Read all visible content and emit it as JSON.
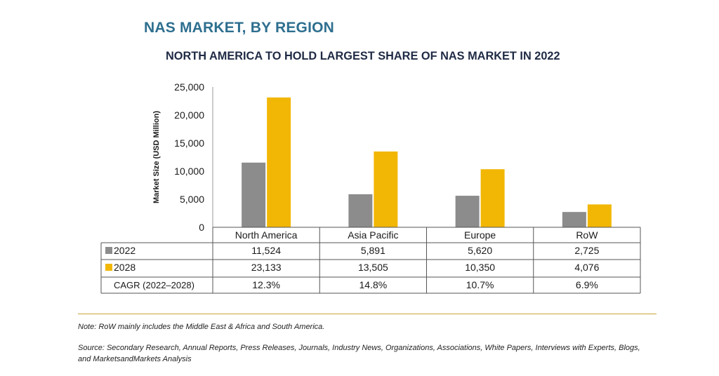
{
  "header": {
    "title": "NAS MARKET, BY REGION",
    "subtitle": "NORTH AMERICA TO HOLD LARGEST SHARE OF NAS MARKET IN 2022"
  },
  "chart_data": {
    "type": "bar",
    "ylabel": "Market Size (USD Million)",
    "ylim": [
      0,
      25000
    ],
    "yticks": [
      "0",
      "5,000",
      "10,000",
      "15,000",
      "20,000",
      "25,000"
    ],
    "yticks_values": [
      0,
      5000,
      10000,
      15000,
      20000,
      25000
    ],
    "categories": [
      "North America",
      "Asia Pacific",
      "Europe",
      "RoW"
    ],
    "series": [
      {
        "name": "2022",
        "color": "#8c8c8c",
        "values": [
          11524,
          5891,
          5620,
          2725
        ],
        "labels": [
          "11,524",
          "5,891",
          "5,620",
          "2,725"
        ]
      },
      {
        "name": "2028",
        "color": "#f2b705",
        "values": [
          23133,
          13505,
          10350,
          4076
        ],
        "labels": [
          "23,133",
          "13,505",
          "10,350",
          "4,076"
        ]
      }
    ],
    "cagr_row": {
      "name": "CAGR (2022–2028)",
      "labels": [
        "12.3%",
        "14.8%",
        "10.7%",
        "6.9%"
      ]
    },
    "grid": false
  },
  "footer": {
    "note": "Note: RoW mainly includes the Middle East & Africa and South America.",
    "source": "Source: Secondary Research, Annual Reports, Press Releases, Journals, Industry News, Organizations, Associations, White Papers, Interviews with Experts, Blogs, and MarketsandMarkets Analysis"
  }
}
